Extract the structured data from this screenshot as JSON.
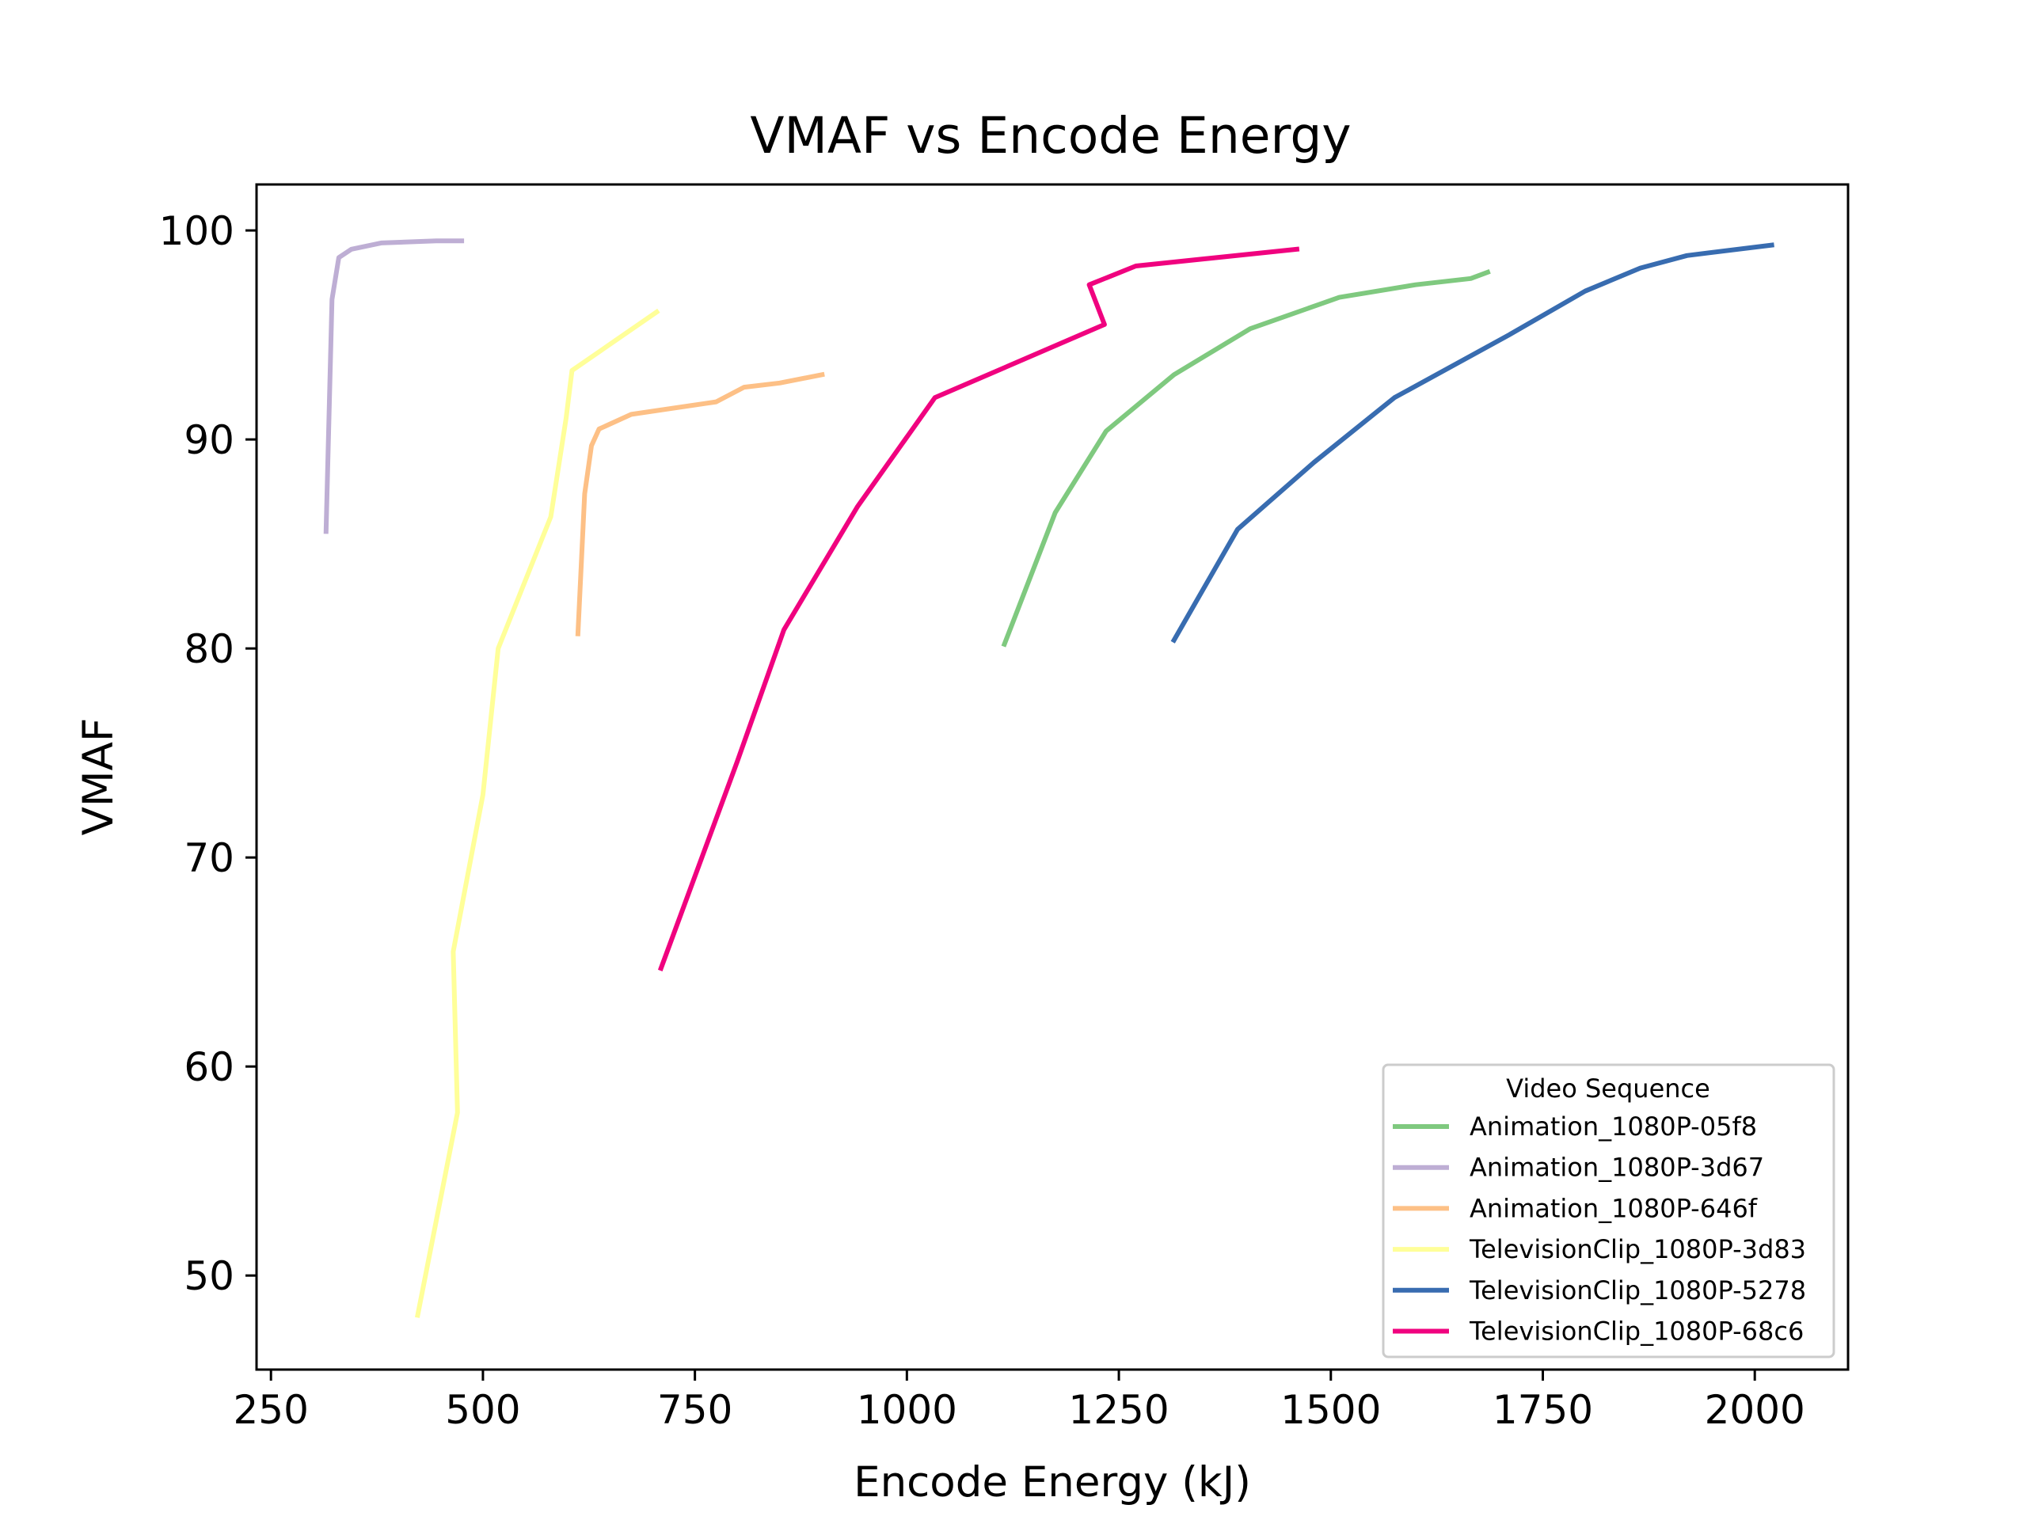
{
  "chart_data": {
    "type": "line",
    "title": "VMAF vs Encode Energy",
    "xlabel": "Encode Energy (kJ)",
    "ylabel": "VMAF",
    "xlim": [
      233,
      2110
    ],
    "ylim": [
      45.5,
      102.2
    ],
    "xticks": [
      250,
      500,
      750,
      1000,
      1250,
      1500,
      1750,
      2000
    ],
    "yticks": [
      50,
      60,
      70,
      80,
      90,
      100
    ],
    "grid": false,
    "legend": {
      "title": "Video Sequence",
      "placement": "lower-right"
    },
    "series": [
      {
        "name": "Animation_1080P-05f8",
        "color": "#7fc97f",
        "points": [
          [
            1115,
            80.2
          ],
          [
            1175,
            86.5
          ],
          [
            1235,
            90.4
          ],
          [
            1315,
            93.1
          ],
          [
            1405,
            95.3
          ],
          [
            1510,
            96.8
          ],
          [
            1600,
            97.4
          ],
          [
            1665,
            97.7
          ],
          [
            1685,
            98.0
          ]
        ]
      },
      {
        "name": "Animation_1080P-3d67",
        "color": "#beaed4",
        "points": [
          [
            315,
            85.6
          ],
          [
            322,
            96.7
          ],
          [
            330,
            98.7
          ],
          [
            345,
            99.1
          ],
          [
            380,
            99.4
          ],
          [
            445,
            99.5
          ],
          [
            475,
            99.5
          ]
        ]
      },
      {
        "name": "Animation_1080P-646f",
        "color": "#fdc086",
        "points": [
          [
            612,
            80.7
          ],
          [
            620,
            87.4
          ],
          [
            628,
            89.7
          ],
          [
            637,
            90.5
          ],
          [
            675,
            91.2
          ],
          [
            775,
            91.8
          ],
          [
            808,
            92.5
          ],
          [
            850,
            92.7
          ],
          [
            900,
            93.1
          ]
        ]
      },
      {
        "name": "TelevisionClip_1080P-3d83",
        "color": "#ffff99",
        "points": [
          [
            423,
            48.1
          ],
          [
            470,
            57.8
          ],
          [
            465,
            65.5
          ],
          [
            500,
            73.0
          ],
          [
            518,
            80.0
          ],
          [
            580,
            86.3
          ],
          [
            598,
            91.0
          ],
          [
            605,
            93.3
          ],
          [
            705,
            96.1
          ]
        ]
      },
      {
        "name": "TelevisionClip_1080P-5278",
        "color": "#386cb0",
        "points": [
          [
            1315,
            80.4
          ],
          [
            1390,
            85.7
          ],
          [
            1480,
            88.9
          ],
          [
            1575,
            92.0
          ],
          [
            1710,
            95.0
          ],
          [
            1800,
            97.1
          ],
          [
            1865,
            98.2
          ],
          [
            1920,
            98.8
          ],
          [
            2020,
            99.3
          ]
        ]
      },
      {
        "name": "TelevisionClip_1080P-68c6",
        "color": "#f0027f",
        "points": [
          [
            710,
            64.7
          ],
          [
            800,
            74.6
          ],
          [
            855,
            80.9
          ],
          [
            942,
            86.8
          ],
          [
            1033,
            92.0
          ],
          [
            1233,
            95.5
          ],
          [
            1215,
            97.4
          ],
          [
            1270,
            98.3
          ],
          [
            1460,
            99.1
          ]
        ]
      }
    ]
  }
}
